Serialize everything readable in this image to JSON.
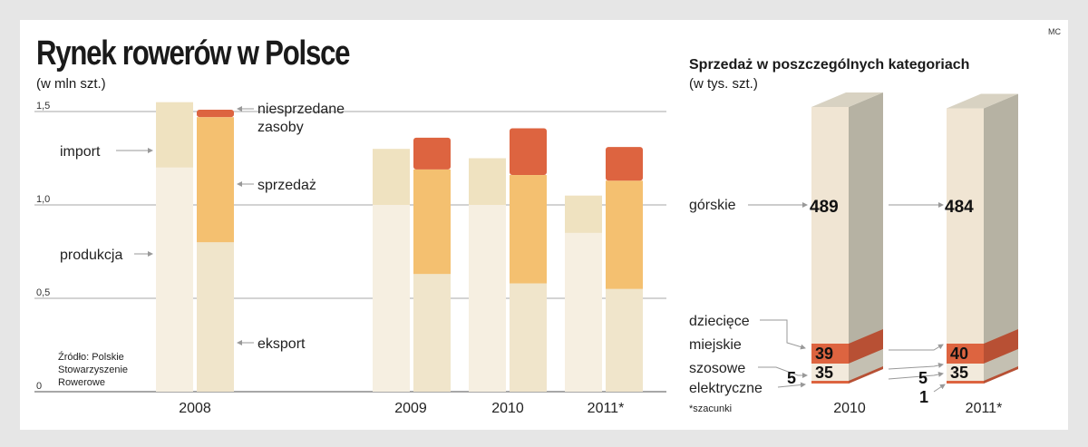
{
  "credit": "MC",
  "left": {
    "title": "Rynek rowerów w Polsce",
    "subtitle": "(w mln szt.)",
    "source": [
      "Źródło: Polskie",
      "Stowarzyszenie",
      "Rowerowe"
    ],
    "labels": {
      "import": "import",
      "produkcja": "produkcja",
      "niesprzedane": [
        "niesprzedane",
        "zasoby"
      ],
      "sprzedaz": "sprzedaż",
      "eksport": "eksport"
    }
  },
  "right": {
    "title": "Sprzedaż w poszczególnych kategoriach",
    "subtitle": "(w tys. szt.)",
    "note": "*szacunki",
    "category_labels": [
      "górskie",
      "dziecięce",
      "miejskie",
      "szosowe",
      "elektryczne"
    ]
  },
  "colors": {
    "production": "#f6efe1",
    "import": "#efe2c0",
    "export": "#f0e5cb",
    "sales": "#f4c070",
    "unsold": "#dd6440",
    "tower_front": "#f0e5d3",
    "tower_side": "#b6b2a3",
    "tower_top": "#d8d2c2",
    "grid": "#8a8a8a"
  },
  "chart_data": [
    {
      "type": "bar",
      "title": "Rynek rowerów w Polsce",
      "ylabel": "(w mln szt.)",
      "ylim": [
        0,
        1.5
      ],
      "yticks": [
        "0",
        "0,5",
        "1,0",
        "1,5"
      ],
      "categories": [
        "2008",
        "2009",
        "2010",
        "2011*"
      ],
      "stacks": {
        "supply": [
          {
            "name": "produkcja",
            "values": [
              1.2,
              1.0,
              1.0,
              0.85
            ]
          },
          {
            "name": "import",
            "values": [
              0.35,
              0.3,
              0.25,
              0.2
            ]
          }
        ],
        "use": [
          {
            "name": "eksport",
            "values": [
              0.8,
              0.63,
              0.58,
              0.55
            ]
          },
          {
            "name": "sprzedaż",
            "values": [
              0.67,
              0.56,
              0.58,
              0.58
            ]
          },
          {
            "name": "niesprzedane zasoby",
            "values": [
              0.04,
              0.17,
              0.25,
              0.18
            ]
          }
        ]
      }
    },
    {
      "type": "bar",
      "title": "Sprzedaż w poszczególnych kategoriach",
      "ylabel": "(w tys. szt.)",
      "categories": [
        "2010",
        "2011*"
      ],
      "series": [
        {
          "name": "górskie",
          "values": [
            489,
            484
          ]
        },
        {
          "name": "dziecięce",
          "values": [
            39,
            40
          ]
        },
        {
          "name": "miejskie",
          "values": [
            39,
            40
          ]
        },
        {
          "name": "szosowe",
          "values": [
            35,
            35
          ]
        },
        {
          "name": "elektryczne",
          "values": [
            5,
            5
          ],
          "value_labels": [
            "5",
            "5"
          ]
        },
        {
          "name": "elektryczne_2011",
          "values": [
            null,
            1
          ],
          "value_labels": [
            "",
            "1"
          ]
        }
      ]
    }
  ]
}
